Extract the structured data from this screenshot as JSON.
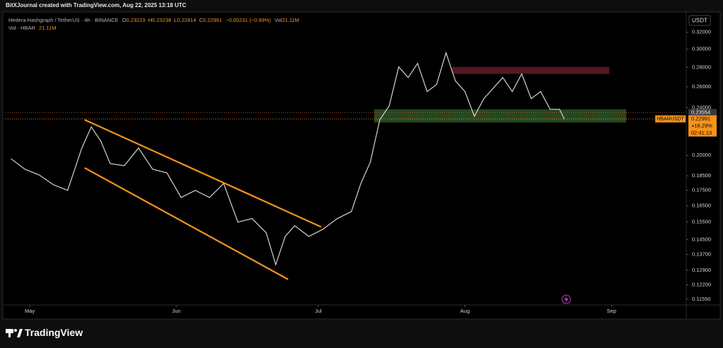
{
  "chart_data": {
    "type": "line",
    "attribution": "BitXJournal created with TradingView.com, Aug 22, 2025 13:18 UTC",
    "title": "Hedera Hashgraph / TetherUS · 4h · BINANCE",
    "ohlc": [
      {
        "label": "O",
        "value": 0.23223
      },
      {
        "label": "H",
        "value": 0.23238
      },
      {
        "label": "L",
        "value": 0.22814
      },
      {
        "label": "C",
        "value": 0.22991
      }
    ],
    "change": "−0.00231 (−0.99%)",
    "volume_label": "Vol",
    "volume": "21.11M",
    "volume_title": "Vol · HBAR",
    "volume_value": "21.11M",
    "y_axis_label": "USDT",
    "x": [
      -4,
      -1,
      2,
      5,
      8,
      11,
      13,
      15,
      17,
      20,
      23,
      26,
      29,
      32,
      35,
      38,
      41,
      44,
      47,
      50,
      52,
      54,
      56,
      59,
      62,
      65,
      68,
      70,
      72,
      74,
      76,
      78,
      80,
      82,
      84,
      86,
      88,
      90,
      92,
      94,
      96,
      98,
      100,
      102,
      104,
      106,
      108,
      110,
      112,
      113
    ],
    "values": [
      0.1975,
      0.1897,
      0.1856,
      0.1788,
      0.175,
      0.2057,
      0.223,
      0.2113,
      0.1938,
      0.1923,
      0.2057,
      0.1897,
      0.1871,
      0.1703,
      0.175,
      0.1703,
      0.1797,
      0.155,
      0.1571,
      0.1488,
      0.1318,
      0.1468,
      0.1529,
      0.1468,
      0.1509,
      0.1571,
      0.1614,
      0.1797,
      0.1949,
      0.2291,
      0.2418,
      0.2804,
      0.2693,
      0.2842,
      0.2552,
      0.2621,
      0.2959,
      0.2657,
      0.2552,
      0.2322,
      0.2484,
      0.2586,
      0.2693,
      0.2552,
      0.273,
      0.2484,
      0.2552,
      0.2385,
      0.2385,
      0.2299
    ],
    "color": "#d8d3cc",
    "xlim": [
      -5.1,
      138.5
    ],
    "xticks": [
      {
        "value": 0,
        "label": "May"
      },
      {
        "value": 31,
        "label": "Jun"
      },
      {
        "value": 61,
        "label": "Jul"
      },
      {
        "value": 92,
        "label": "Aug"
      },
      {
        "value": 123,
        "label": "Sep"
      }
    ],
    "ylim": [
      0.113,
      0.343
    ],
    "log_scale": true,
    "yticks": [
      {
        "value": 0.32,
        "label": "0.32000"
      },
      {
        "value": 0.3,
        "label": "0.30000"
      },
      {
        "value": 0.28,
        "label": "0.28000"
      },
      {
        "value": 0.26,
        "label": "0.26000"
      },
      {
        "value": 0.24,
        "label": "0.24000"
      },
      {
        "value": 0.2,
        "label": "0.20000"
      },
      {
        "value": 0.185,
        "label": "0.18500"
      },
      {
        "value": 0.175,
        "label": "0.17500"
      },
      {
        "value": 0.165,
        "label": "0.16500"
      },
      {
        "value": 0.155,
        "label": "0.15500"
      },
      {
        "value": 0.145,
        "label": "0.14500"
      },
      {
        "value": 0.137,
        "label": "0.13700"
      },
      {
        "value": 0.129,
        "label": "0.12900"
      },
      {
        "value": 0.122,
        "label": "0.12200"
      },
      {
        "value": 0.1155,
        "label": "0.11550"
      }
    ],
    "zones": [
      {
        "x": [
          72.8,
          126.1
        ],
        "y": [
          0.2268,
          0.2385
        ],
        "color": "#2f5a28"
      },
      {
        "x": [
          89.3,
          122.5
        ],
        "y": [
          0.273,
          0.2804
        ],
        "color": "#6a1e2b"
      }
    ],
    "trendlines": [
      {
        "x": [
          11.6,
          61.6
        ],
        "y": [
          0.2291,
          0.1522
        ]
      },
      {
        "x": [
          11.6,
          54.6
        ],
        "y": [
          0.1907,
          0.1246
        ]
      }
    ],
    "trendline_color": "#f7931a",
    "price_lines": [
      {
        "value": 0.23554,
        "color": "#3a3a3a"
      },
      {
        "value": 0.22991,
        "name": "HBARUSDT",
        "change": "+16.29%",
        "countdown": "02:41:13",
        "color": "#f7931a"
      }
    ],
    "brand": "TradingView"
  }
}
